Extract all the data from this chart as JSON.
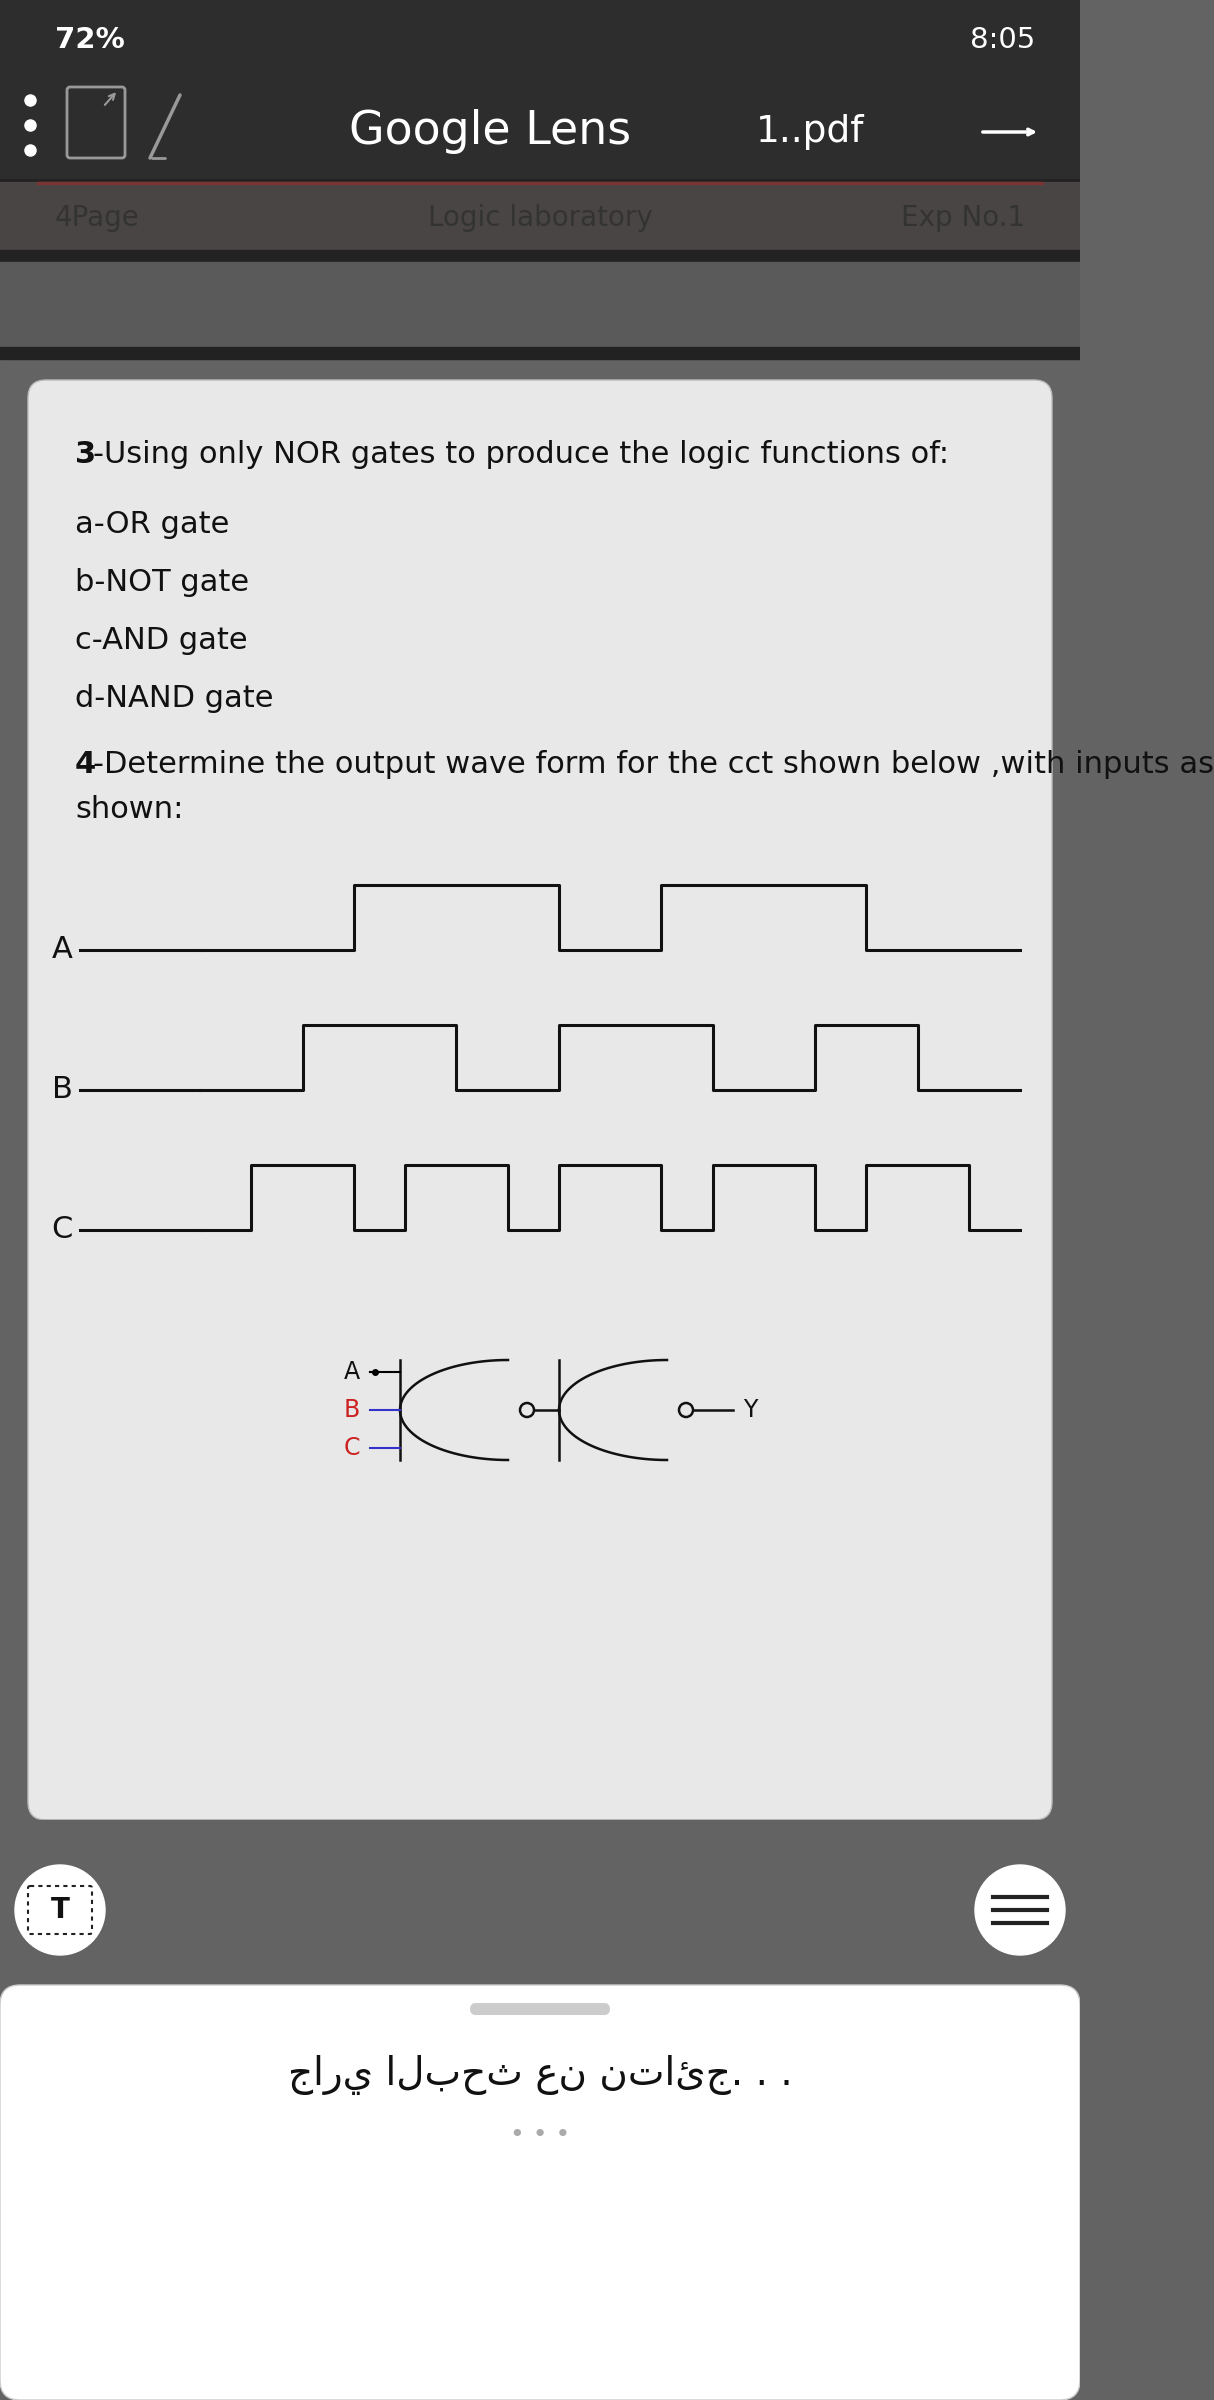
{
  "bg_dark": "#636363",
  "bg_topbar": "#2d2d2d",
  "bg_toolbar": "#383838",
  "bg_header_strip": "#4a4545",
  "bg_card": "#e8e8e8",
  "text_white": "#ffffff",
  "text_dark": "#1a1a1a",
  "text_gray": "#888888",
  "status_left": "72%",
  "status_right": "8:05",
  "toolbar_title": "Google Lens",
  "toolbar_pdf": "1..pdf",
  "page_left": "4Page",
  "page_center": "Logic laboratory",
  "page_right": "Exp No.1",
  "item_3": "3-Using only NOR gates to produce the logic functions of:",
  "item_a": "a-OR gate",
  "item_b": "b-NOT gate",
  "item_c": "c-AND gate",
  "item_d": "d-NAND gate",
  "item_4_line1": "4-Determine the output wave form for the cct shown below ,with inputs as",
  "item_4_line2": "shown:",
  "bottom_arabic": "جاري البحث عن نتائج. . .",
  "A_signal": [
    0,
    0,
    0,
    1,
    1,
    1,
    1,
    0,
    0,
    1,
    1,
    1,
    1,
    0,
    0,
    0
  ],
  "B_signal": [
    0,
    0,
    1,
    1,
    1,
    0,
    0,
    1,
    1,
    1,
    0,
    0,
    1,
    1,
    0,
    0
  ],
  "C_signal": [
    0,
    1,
    1,
    0,
    1,
    1,
    0,
    1,
    1,
    0,
    1,
    1,
    0,
    1,
    1,
    0
  ]
}
